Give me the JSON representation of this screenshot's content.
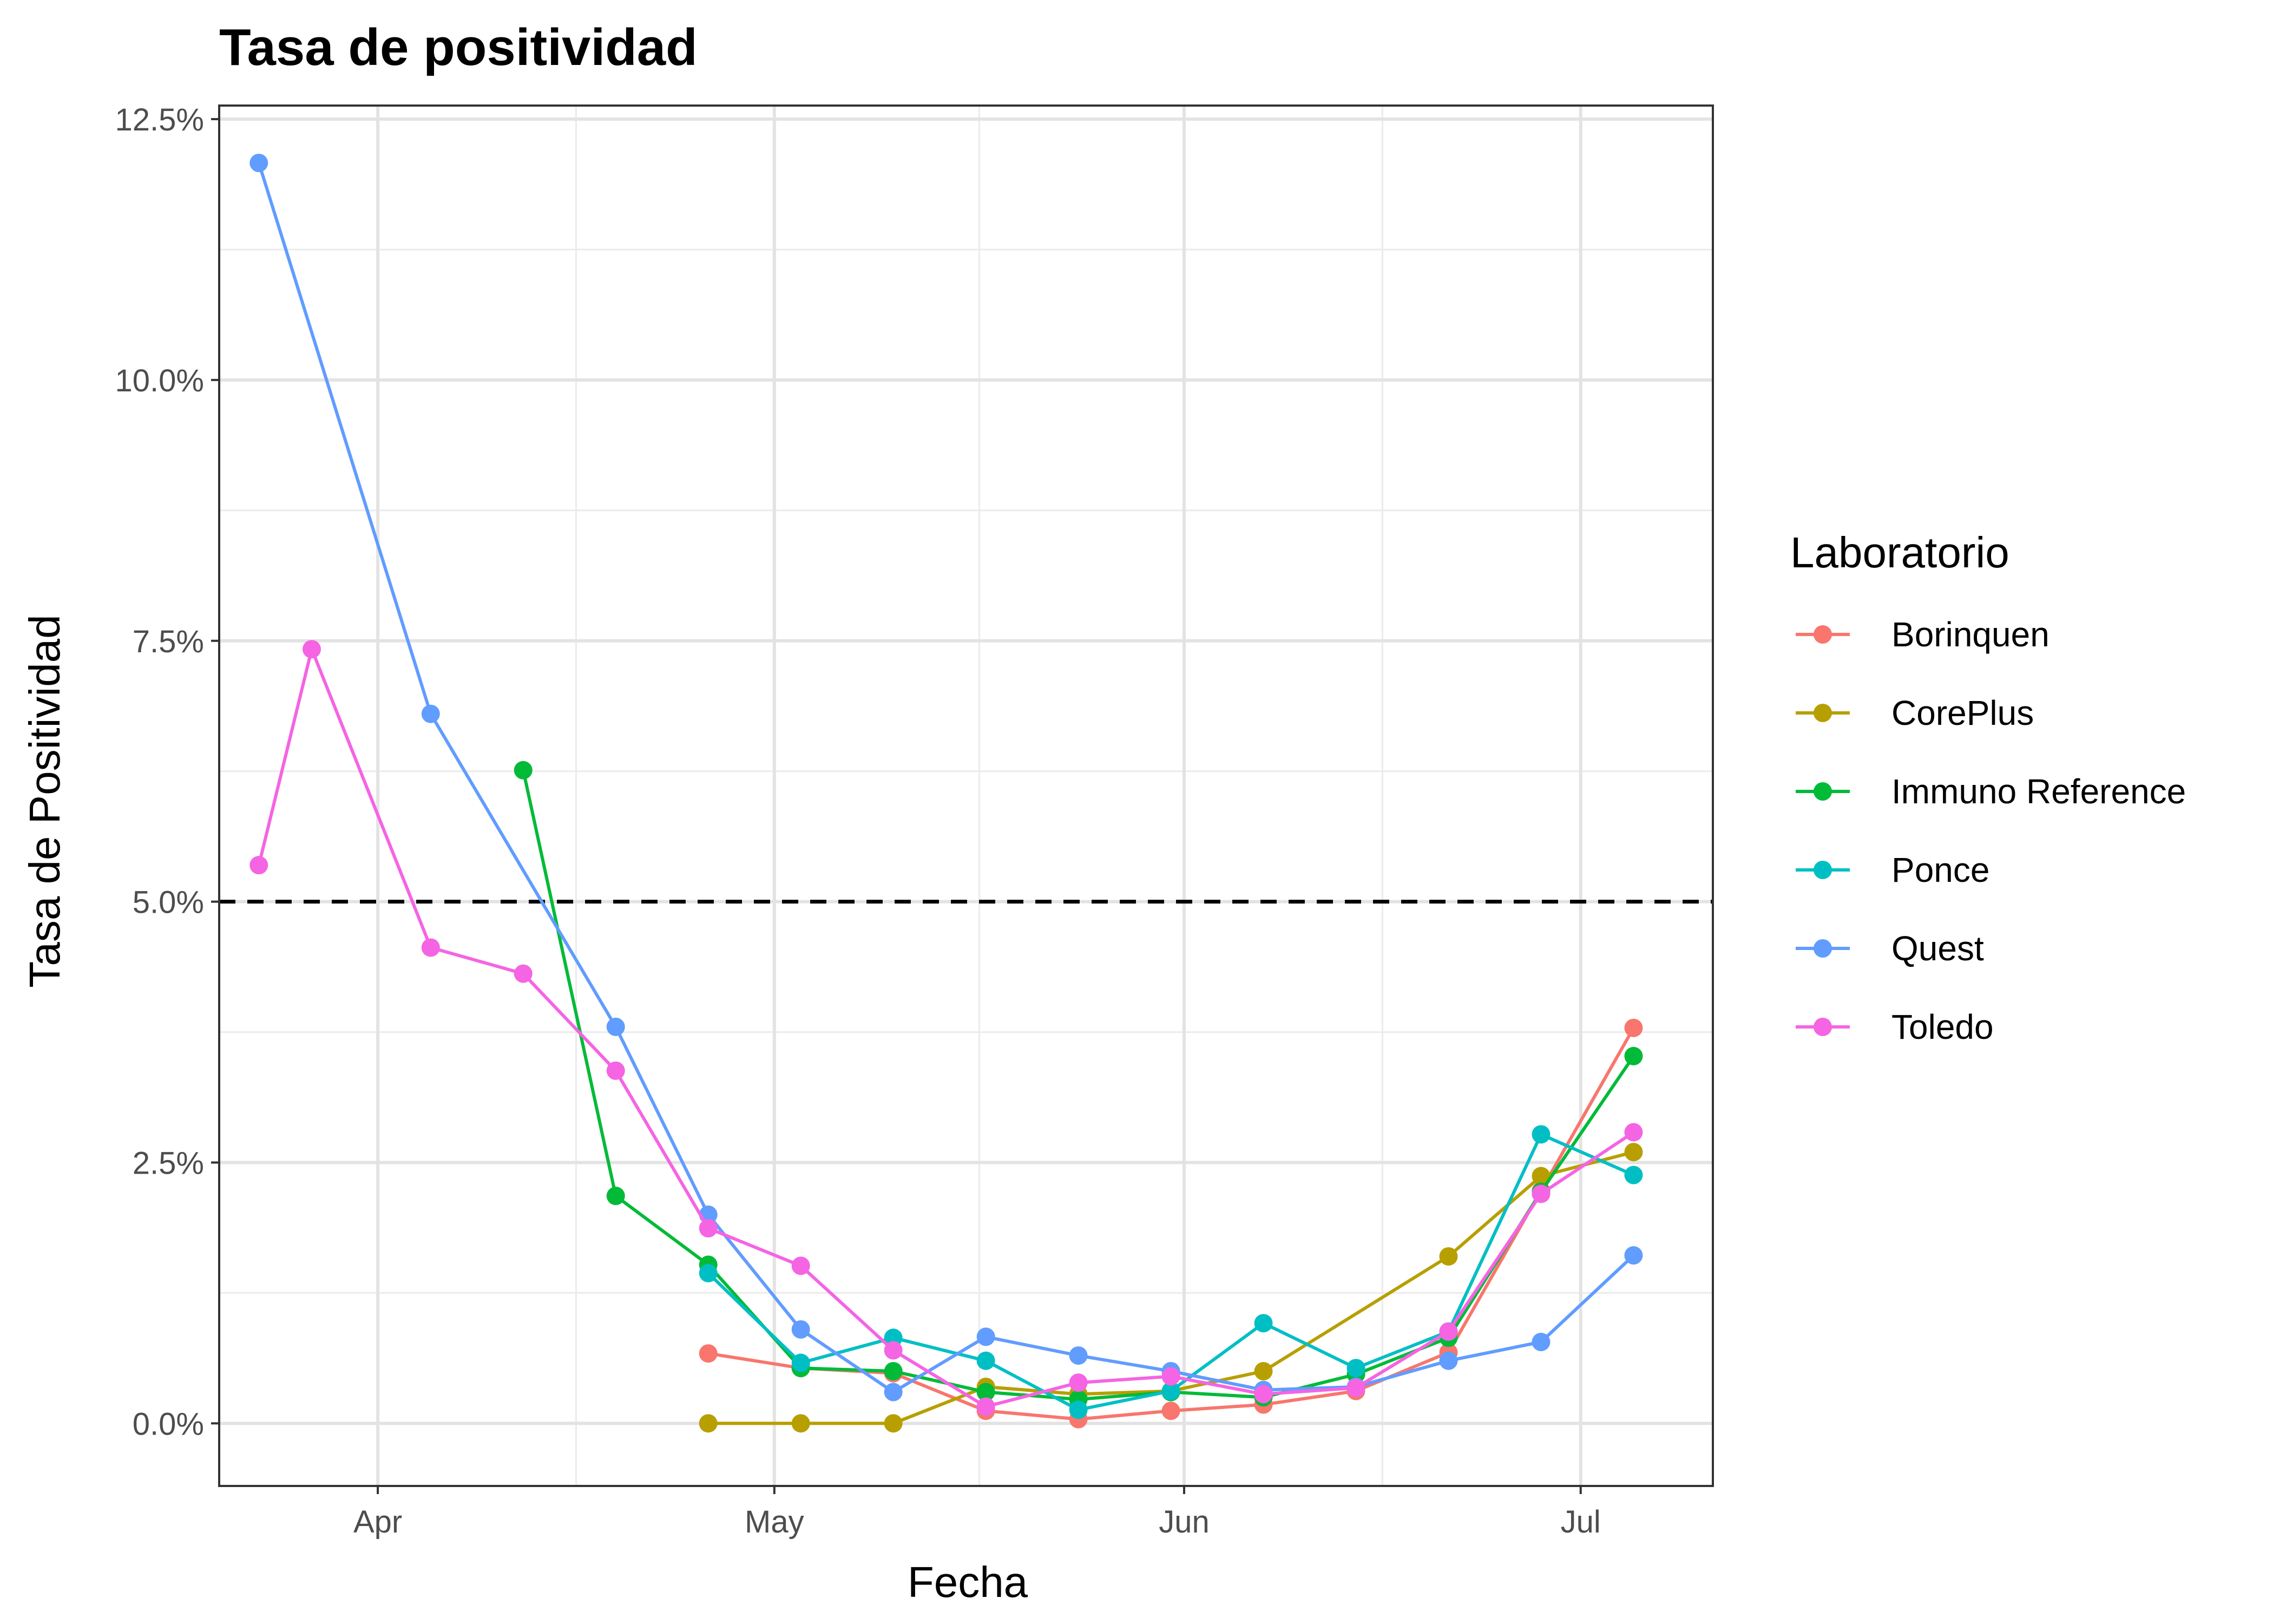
{
  "chart_data": {
    "type": "line",
    "title": "Tasa de positividad",
    "xlabel": "Fecha",
    "ylabel": "Tasa de Positividad",
    "x_range": [
      "2020-03-20",
      "2020-07-11"
    ],
    "ylim": [
      -0.006,
      0.1263
    ],
    "y_ticks": [
      0,
      0.025,
      0.05,
      0.075,
      0.1,
      0.125
    ],
    "y_tick_labels": [
      "0.0%",
      "2.5%",
      "5.0%",
      "7.5%",
      "10.0%",
      "12.5%"
    ],
    "x_ticks": [
      "2020-04-01",
      "2020-05-01",
      "2020-06-01",
      "2020-07-01"
    ],
    "x_tick_labels": [
      "Apr",
      "May",
      "Jun",
      "Jul"
    ],
    "reference_line": {
      "y": 0.05,
      "style": "dashed",
      "color": "#000000"
    },
    "grid": true,
    "legend": {
      "title": "Laboratorio",
      "position": "right"
    },
    "series": [
      {
        "name": "Borinquen",
        "color": "#F8766D",
        "points": [
          [
            "2020-04-26",
            0.0067
          ],
          [
            "2020-05-03",
            0.0053
          ],
          [
            "2020-05-10",
            0.0048
          ],
          [
            "2020-05-17",
            0.0012
          ],
          [
            "2020-05-24",
            0.0004
          ],
          [
            "2020-05-31",
            0.0012
          ],
          [
            "2020-06-07",
            0.0018
          ],
          [
            "2020-06-14",
            0.0031
          ],
          [
            "2020-06-21",
            0.0068
          ],
          [
            "2020-06-28",
            0.0223
          ],
          [
            "2020-07-05",
            0.0379
          ]
        ]
      },
      {
        "name": "CorePlus",
        "color": "#B79F00",
        "points": [
          [
            "2020-04-26",
            0.0
          ],
          [
            "2020-05-03",
            0.0
          ],
          [
            "2020-05-10",
            0.0
          ],
          [
            "2020-05-17",
            0.0035
          ],
          [
            "2020-05-24",
            0.0028
          ],
          [
            "2020-05-31",
            0.0031
          ],
          [
            "2020-06-07",
            0.005
          ],
          [
            "2020-06-21",
            0.016
          ],
          [
            "2020-06-28",
            0.0237
          ],
          [
            "2020-07-05",
            0.026
          ]
        ]
      },
      {
        "name": "Immuno Reference",
        "color": "#00BA38",
        "points": [
          [
            "2020-04-12",
            0.0626
          ],
          [
            "2020-04-19",
            0.0218
          ],
          [
            "2020-04-26",
            0.0152
          ],
          [
            "2020-05-03",
            0.0053
          ],
          [
            "2020-05-10",
            0.005
          ],
          [
            "2020-05-17",
            0.003
          ],
          [
            "2020-05-24",
            0.0023
          ],
          [
            "2020-05-31",
            0.003
          ],
          [
            "2020-06-07",
            0.0025
          ],
          [
            "2020-06-14",
            0.0047
          ],
          [
            "2020-06-21",
            0.0082
          ],
          [
            "2020-06-28",
            0.0222
          ],
          [
            "2020-07-05",
            0.0352
          ]
        ]
      },
      {
        "name": "Ponce",
        "color": "#00BFC4",
        "points": [
          [
            "2020-04-26",
            0.0144
          ],
          [
            "2020-05-03",
            0.0058
          ],
          [
            "2020-05-10",
            0.0082
          ],
          [
            "2020-05-17",
            0.006
          ],
          [
            "2020-05-24",
            0.0013
          ],
          [
            "2020-05-31",
            0.0031
          ],
          [
            "2020-06-07",
            0.0096
          ],
          [
            "2020-06-14",
            0.0053
          ],
          [
            "2020-06-21",
            0.0088
          ],
          [
            "2020-06-28",
            0.0277
          ],
          [
            "2020-07-05",
            0.0238
          ]
        ]
      },
      {
        "name": "Quest",
        "color": "#619CFF",
        "points": [
          [
            "2020-03-23",
            0.1208
          ],
          [
            "2020-04-05",
            0.068
          ],
          [
            "2020-04-19",
            0.038
          ],
          [
            "2020-04-26",
            0.02
          ],
          [
            "2020-05-03",
            0.009
          ],
          [
            "2020-05-10",
            0.003
          ],
          [
            "2020-05-17",
            0.0083
          ],
          [
            "2020-05-24",
            0.0065
          ],
          [
            "2020-05-31",
            0.005
          ],
          [
            "2020-06-07",
            0.0032
          ],
          [
            "2020-06-14",
            0.0035
          ],
          [
            "2020-06-21",
            0.006
          ],
          [
            "2020-06-28",
            0.0078
          ],
          [
            "2020-07-05",
            0.0161
          ]
        ]
      },
      {
        "name": "Toledo",
        "color": "#F564E3",
        "points": [
          [
            "2020-03-23",
            0.0535
          ],
          [
            "2020-03-27",
            0.0742
          ],
          [
            "2020-04-05",
            0.0456
          ],
          [
            "2020-04-12",
            0.0431
          ],
          [
            "2020-04-19",
            0.0338
          ],
          [
            "2020-04-26",
            0.0187
          ],
          [
            "2020-05-03",
            0.0151
          ],
          [
            "2020-05-10",
            0.007
          ],
          [
            "2020-05-17",
            0.0016
          ],
          [
            "2020-05-24",
            0.0039
          ],
          [
            "2020-05-31",
            0.0045
          ],
          [
            "2020-06-07",
            0.0028
          ],
          [
            "2020-06-14",
            0.0034
          ],
          [
            "2020-06-21",
            0.0088
          ],
          [
            "2020-06-28",
            0.022
          ],
          [
            "2020-07-05",
            0.0279
          ]
        ]
      }
    ]
  }
}
